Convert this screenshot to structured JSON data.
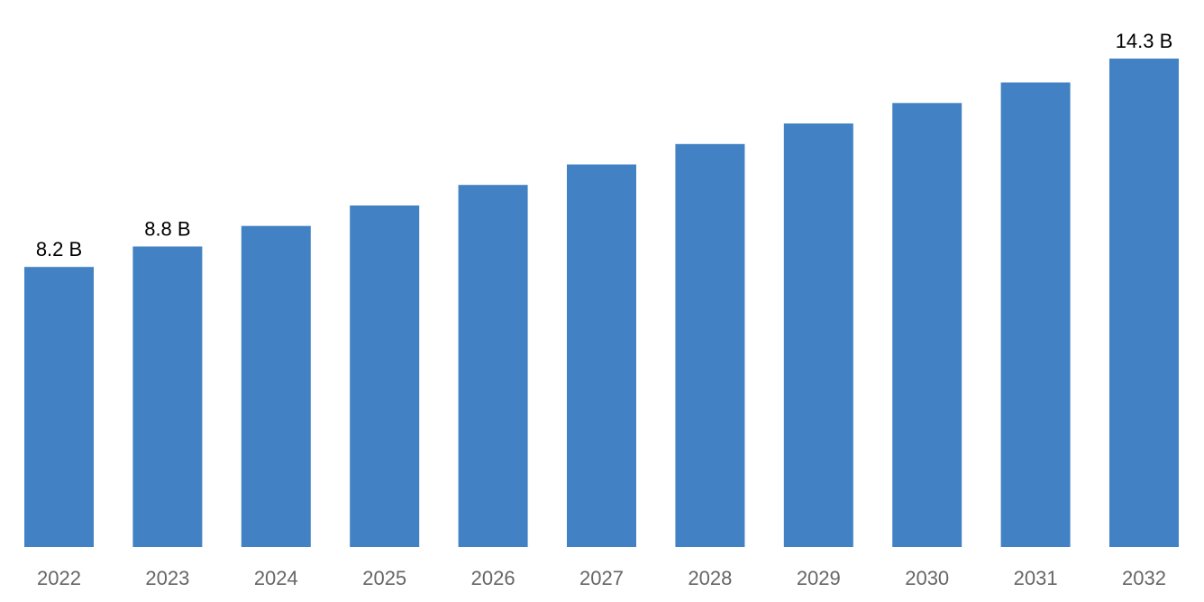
{
  "chart_data": {
    "type": "bar",
    "categories": [
      "2022",
      "2023",
      "2024",
      "2025",
      "2026",
      "2027",
      "2028",
      "2029",
      "2030",
      "2031",
      "2032"
    ],
    "values": [
      8.2,
      8.8,
      9.4,
      10.0,
      10.6,
      11.2,
      11.8,
      12.4,
      13.0,
      13.6,
      14.3
    ],
    "data_labels": [
      "8.2 B",
      "8.8 B",
      "",
      "",
      "",
      "",
      "",
      "",
      "",
      "",
      "14.3 B"
    ],
    "title": "",
    "xlabel": "",
    "ylabel": "",
    "ylim": [
      0,
      16
    ],
    "grid": false,
    "legend": "none",
    "colors": {
      "bar": "#4282c4",
      "tick_label": "#666666",
      "data_label": "#000000"
    }
  }
}
